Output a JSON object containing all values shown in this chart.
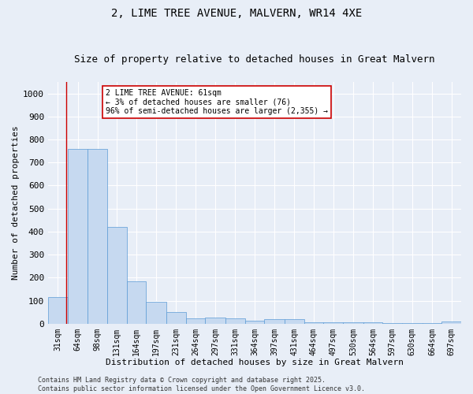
{
  "title1": "2, LIME TREE AVENUE, MALVERN, WR14 4XE",
  "title2": "Size of property relative to detached houses in Great Malvern",
  "xlabel": "Distribution of detached houses by size in Great Malvern",
  "ylabel": "Number of detached properties",
  "annotation_line1": "2 LIME TREE AVENUE: 61sqm",
  "annotation_line2": "← 3% of detached houses are smaller (76)",
  "annotation_line3": "96% of semi-detached houses are larger (2,355) →",
  "footer1": "Contains HM Land Registry data © Crown copyright and database right 2025.",
  "footer2": "Contains public sector information licensed under the Open Government Licence v3.0.",
  "bar_edges": [
    31,
    64,
    98,
    131,
    164,
    197,
    231,
    264,
    297,
    331,
    364,
    397,
    431,
    464,
    497,
    530,
    564,
    597,
    630,
    664,
    697
  ],
  "bar_heights": [
    115,
    760,
    760,
    420,
    185,
    95,
    50,
    22,
    25,
    22,
    14,
    20,
    20,
    5,
    5,
    5,
    5,
    2,
    2,
    2,
    10
  ],
  "bar_color": "#c6d9f0",
  "bar_edge_color": "#5b9bd5",
  "vline_x": 61,
  "vline_color": "#cc0000",
  "annotation_box_color": "#cc0000",
  "ylim": [
    0,
    1050
  ],
  "yticks": [
    0,
    100,
    200,
    300,
    400,
    500,
    600,
    700,
    800,
    900,
    1000
  ],
  "background_color": "#e8eef7",
  "grid_color": "#ffffff",
  "title1_fontsize": 10,
  "title2_fontsize": 9,
  "tick_label_fontsize": 7,
  "axis_label_fontsize": 8,
  "annotation_fontsize": 7,
  "footer_fontsize": 6
}
